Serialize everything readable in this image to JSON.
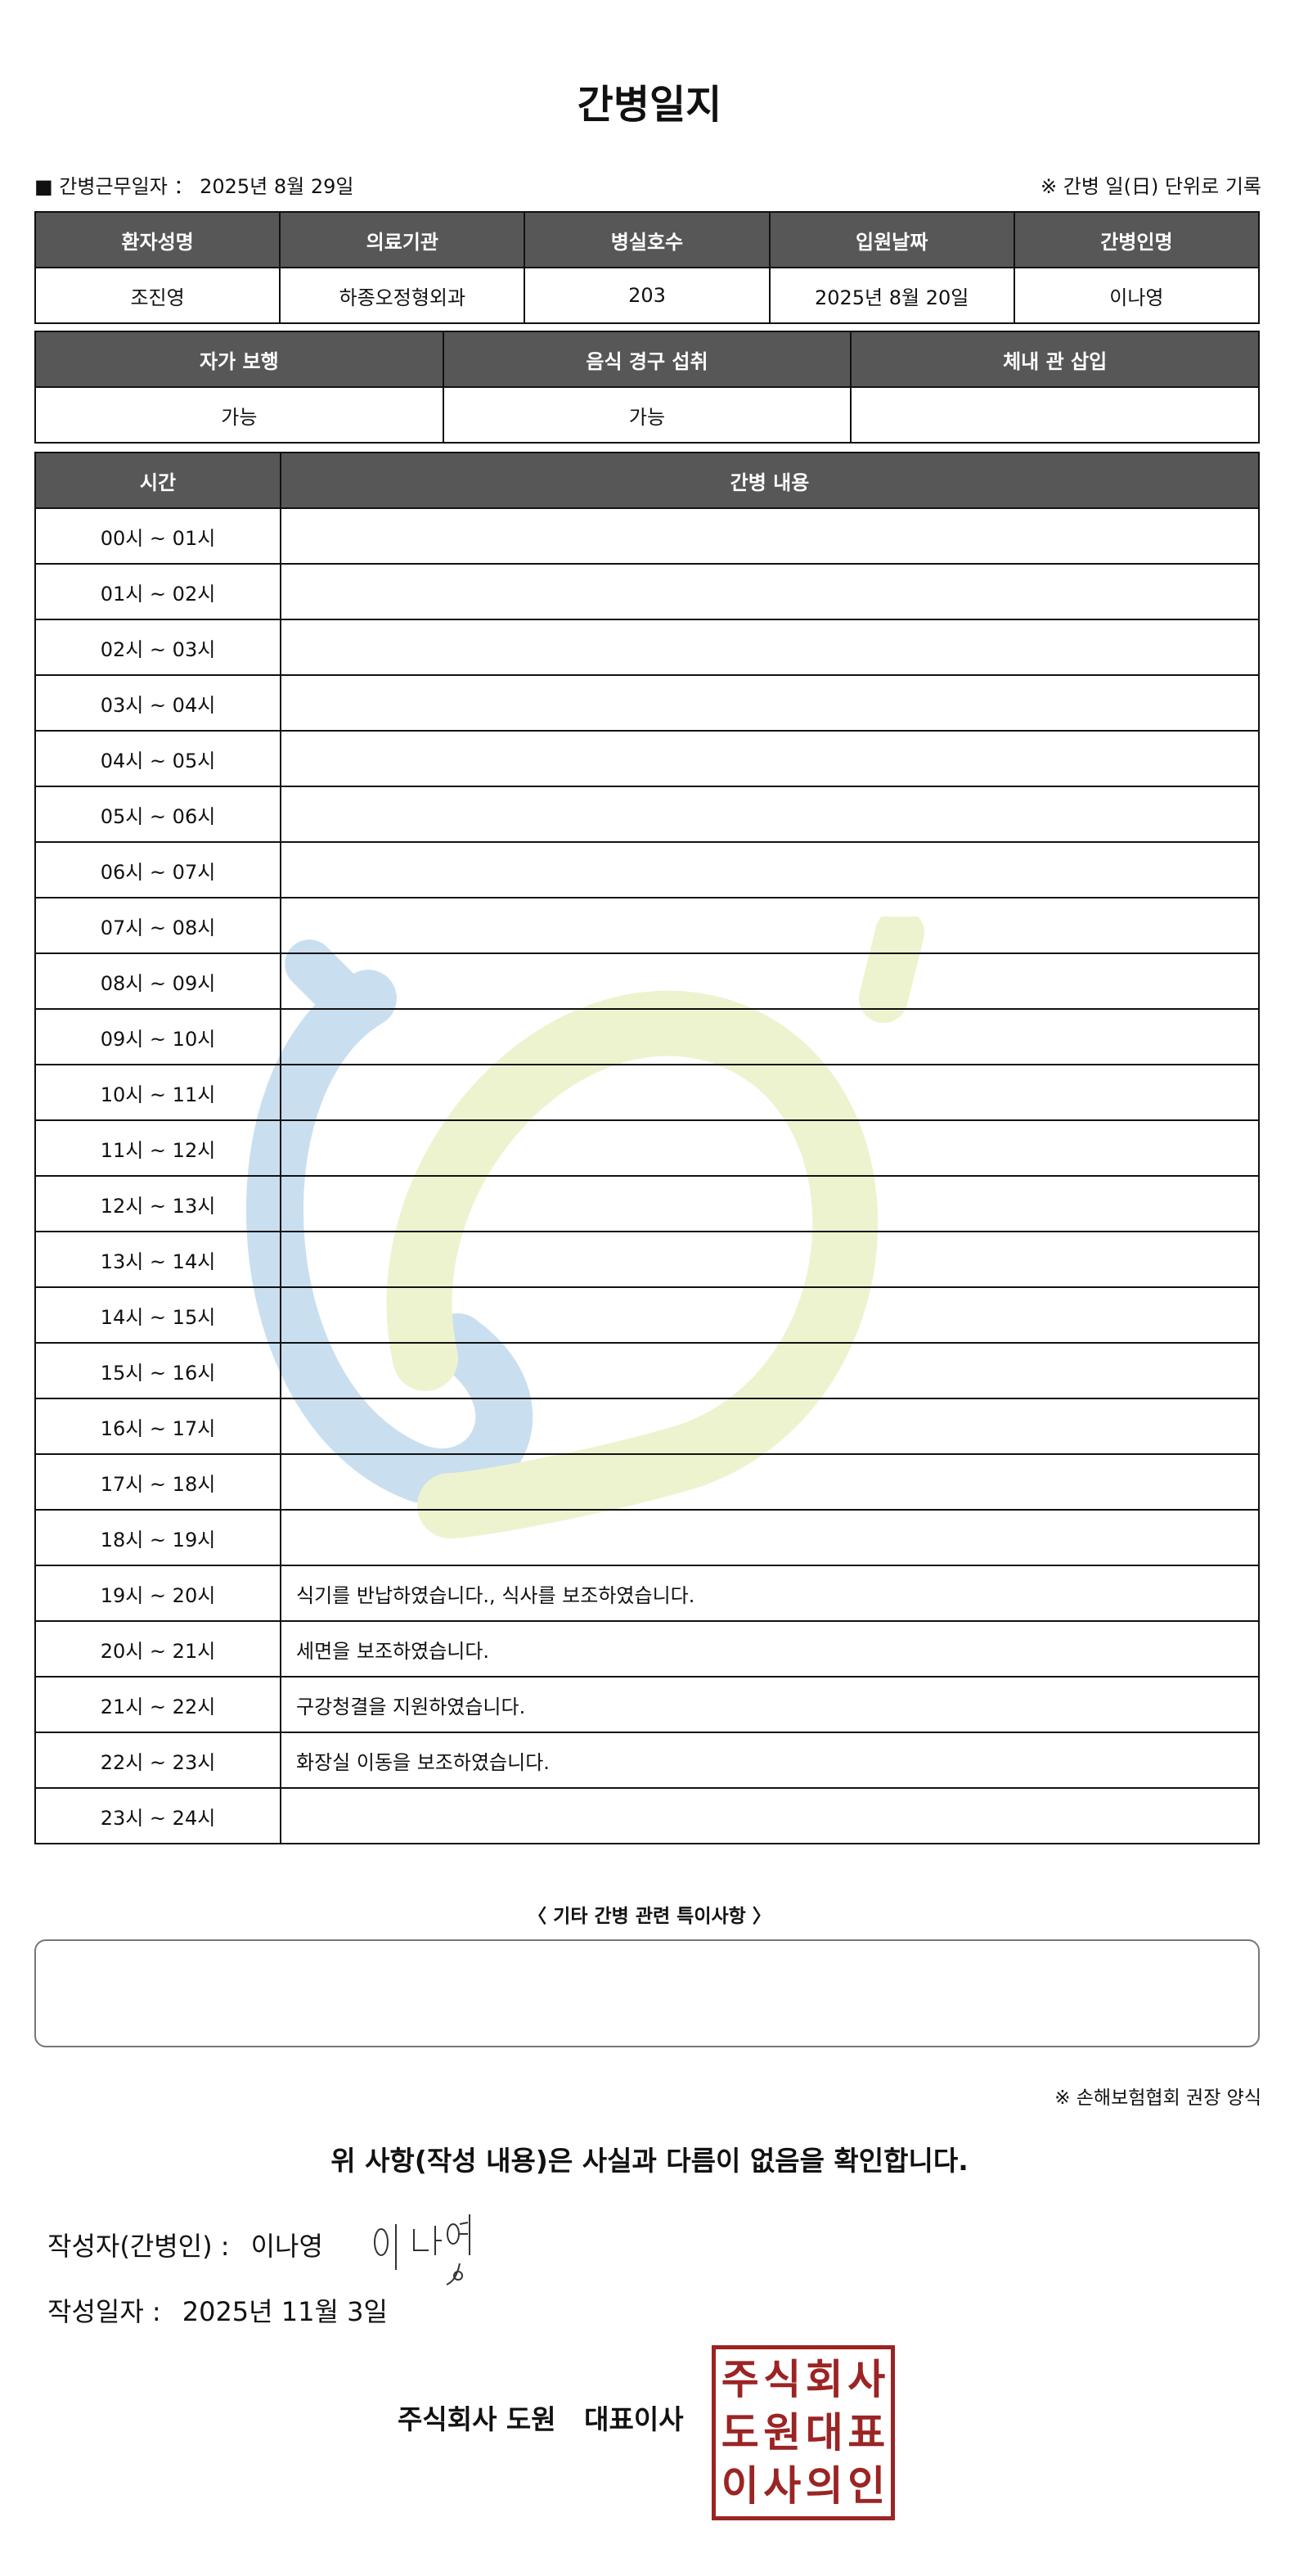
{
  "title": "간병일지",
  "info": {
    "work_date_label": "■ 간병근무일자 ：",
    "work_date": "2025년 8월 29일",
    "note": "※ 간병 일(日) 단위로 기록"
  },
  "patient_table": {
    "headers": [
      "환자성명",
      "의료기관",
      "병실호수",
      "입원날짜",
      "간병인명"
    ],
    "values": [
      "조진영",
      "하종오정형외과",
      "203",
      "2025년 8월 20일",
      "이나영"
    ]
  },
  "status_table": {
    "headers": [
      "자가 보행",
      "음식 경구 섭취",
      "체내 관 삽입"
    ],
    "values": [
      "가능",
      "가능",
      ""
    ]
  },
  "log_table": {
    "headers": [
      "시간",
      "간병 내용"
    ],
    "rows": [
      {
        "time": "00시 ~ 01시",
        "content": ""
      },
      {
        "time": "01시 ~ 02시",
        "content": ""
      },
      {
        "time": "02시 ~ 03시",
        "content": ""
      },
      {
        "time": "03시 ~ 04시",
        "content": ""
      },
      {
        "time": "04시 ~ 05시",
        "content": ""
      },
      {
        "time": "05시 ~ 06시",
        "content": ""
      },
      {
        "time": "06시 ~ 07시",
        "content": ""
      },
      {
        "time": "07시 ~ 08시",
        "content": ""
      },
      {
        "time": "08시 ~ 09시",
        "content": ""
      },
      {
        "time": "09시 ~ 10시",
        "content": ""
      },
      {
        "time": "10시 ~ 11시",
        "content": ""
      },
      {
        "time": "11시 ~ 12시",
        "content": ""
      },
      {
        "time": "12시 ~ 13시",
        "content": ""
      },
      {
        "time": "13시 ~ 14시",
        "content": ""
      },
      {
        "time": "14시 ~ 15시",
        "content": ""
      },
      {
        "time": "15시 ~ 16시",
        "content": ""
      },
      {
        "time": "16시 ~ 17시",
        "content": ""
      },
      {
        "time": "17시 ~ 18시",
        "content": ""
      },
      {
        "time": "18시 ~ 19시",
        "content": ""
      },
      {
        "time": "19시 ~ 20시",
        "content": "식기를 반납하였습니다., 식사를 보조하였습니다."
      },
      {
        "time": "20시 ~ 21시",
        "content": "세면을 보조하였습니다."
      },
      {
        "time": "21시 ~ 22시",
        "content": "구강청결을 지원하였습니다."
      },
      {
        "time": "22시 ~ 23시",
        "content": "화장실 이동을 보조하였습니다."
      },
      {
        "time": "23시 ~ 24시",
        "content": ""
      }
    ]
  },
  "special_notes": {
    "label": "〈 기타 간병 관련 특이사항 〉",
    "value": ""
  },
  "standard_note": "※ 손해보험협회 권장 양식",
  "confirmation": "위 사항(작성 내용)은 사실과 다름이 없음을 확인합니다.",
  "author": {
    "label": "작성자(간병인) :",
    "name": "이나영",
    "signature": "이나영"
  },
  "written_date": {
    "label": "작성일자 :",
    "value": "2025년 11월 3일"
  },
  "company": "주식회사 도원   대표이사",
  "seal": {
    "text": "주식회사도원대표이사의인",
    "color": "#9b2424"
  },
  "colors": {
    "header_bg": "#575757",
    "watermark_blue": "#c9dff0",
    "watermark_green": "#eef3cf"
  }
}
